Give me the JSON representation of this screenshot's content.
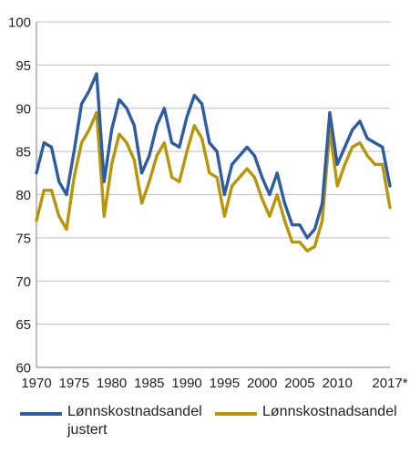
{
  "chart_data": {
    "type": "line",
    "x": [
      1970,
      1971,
      1972,
      1973,
      1974,
      1975,
      1976,
      1977,
      1978,
      1979,
      1980,
      1981,
      1982,
      1983,
      1984,
      1985,
      1986,
      1987,
      1988,
      1989,
      1990,
      1991,
      1992,
      1993,
      1994,
      1995,
      1996,
      1997,
      1998,
      1999,
      2000,
      2001,
      2002,
      2003,
      2004,
      2005,
      2006,
      2007,
      2008,
      2009,
      2010,
      2011,
      2012,
      2013,
      2014,
      2015,
      2016,
      2017
    ],
    "xticks": [
      {
        "value": 1970,
        "label": "1970"
      },
      {
        "value": 1975,
        "label": "1975"
      },
      {
        "value": 1980,
        "label": "1980"
      },
      {
        "value": 1985,
        "label": "1985"
      },
      {
        "value": 1990,
        "label": "1990"
      },
      {
        "value": 1995,
        "label": "1995"
      },
      {
        "value": 2000,
        "label": "2000"
      },
      {
        "value": 2005,
        "label": "2005"
      },
      {
        "value": 2010,
        "label": "2010"
      },
      {
        "value": 2017,
        "label": "2017*"
      }
    ],
    "yticks": [
      "60",
      "65",
      "70",
      "75",
      "80",
      "85",
      "90",
      "95",
      "100"
    ],
    "ylim": [
      60,
      100
    ],
    "xlim": [
      1970,
      2017
    ],
    "grid": "horizontal",
    "legend_position": "bottom",
    "series": [
      {
        "name": "Lønnskostnadsandel justert",
        "color": "#2e5c9e",
        "values": [
          82.5,
          86.0,
          85.5,
          81.5,
          80.0,
          85.0,
          90.5,
          92.0,
          94.0,
          81.5,
          87.5,
          91.0,
          90.0,
          88.0,
          82.5,
          84.5,
          88.0,
          90.0,
          86.0,
          85.5,
          89.0,
          91.5,
          90.5,
          86.0,
          85.0,
          80.0,
          83.5,
          84.5,
          85.5,
          84.5,
          82.0,
          80.0,
          82.5,
          79.0,
          76.5,
          76.5,
          75.0,
          76.0,
          79.0,
          89.5,
          83.5,
          85.5,
          87.5,
          88.5,
          86.5,
          86.0,
          85.5,
          81.0
        ]
      },
      {
        "name": "Lønnskostnadsandel",
        "color": "#b8960c",
        "values": [
          77.0,
          80.5,
          80.5,
          77.5,
          76.0,
          82.0,
          86.0,
          87.5,
          89.5,
          77.5,
          83.5,
          87.0,
          86.0,
          84.0,
          79.0,
          81.5,
          84.5,
          86.0,
          82.0,
          81.5,
          85.0,
          88.0,
          86.5,
          82.5,
          82.0,
          77.5,
          81.0,
          82.0,
          83.0,
          82.0,
          79.5,
          77.5,
          80.0,
          77.0,
          74.5,
          74.5,
          73.5,
          74.0,
          77.0,
          87.5,
          81.0,
          83.5,
          85.5,
          86.0,
          84.5,
          83.5,
          83.5,
          78.5
        ]
      }
    ],
    "legend_labels": {
      "series_a_line1": "Lønnskostnadsandel",
      "series_a_line2": "justert",
      "series_b": "Lønnskostnadsandel"
    }
  }
}
